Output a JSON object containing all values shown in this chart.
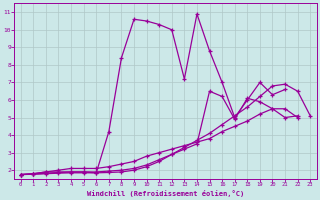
{
  "xlabel": "Windchill (Refroidissement éolien,°C)",
  "bg_color": "#cce8e8",
  "grid_color": "#b0c8c8",
  "line_color": "#990099",
  "marker": "+",
  "xlim": [
    -0.5,
    23.5
  ],
  "ylim": [
    1.5,
    11.5
  ],
  "xticks": [
    0,
    1,
    2,
    3,
    4,
    5,
    6,
    7,
    8,
    9,
    10,
    11,
    12,
    13,
    14,
    15,
    16,
    17,
    18,
    19,
    20,
    21,
    22,
    23
  ],
  "yticks": [
    2,
    3,
    4,
    5,
    6,
    7,
    8,
    9,
    10,
    11
  ],
  "curves": [
    {
      "x": [
        0,
        1,
        2,
        3,
        4,
        5,
        6,
        7,
        8,
        9,
        10,
        11,
        12,
        13,
        14,
        15,
        16,
        17,
        18,
        19,
        20,
        21
      ],
      "y": [
        1.75,
        1.8,
        1.9,
        1.9,
        1.9,
        1.9,
        1.85,
        4.2,
        8.4,
        10.6,
        10.5,
        10.3,
        10.0,
        7.2,
        10.9,
        8.8,
        7.0,
        5.0,
        6.0,
        7.0,
        6.3,
        6.6
      ]
    },
    {
      "x": [
        0,
        1,
        2,
        3,
        4,
        5,
        6,
        7,
        8,
        9,
        10,
        11,
        12,
        13,
        14,
        15,
        16,
        17,
        18,
        19,
        20,
        21,
        22
      ],
      "y": [
        1.75,
        1.8,
        1.9,
        2.0,
        2.1,
        2.1,
        2.1,
        2.2,
        2.35,
        2.5,
        2.8,
        3.0,
        3.2,
        3.4,
        3.6,
        3.8,
        4.2,
        4.5,
        4.8,
        5.2,
        5.5,
        5.5,
        5.0
      ]
    },
    {
      "x": [
        0,
        1,
        2,
        3,
        4,
        5,
        6,
        7,
        8,
        9,
        10,
        11,
        12,
        13,
        14,
        15,
        16,
        17,
        18,
        19,
        20,
        21,
        22
      ],
      "y": [
        1.75,
        1.78,
        1.82,
        1.87,
        1.9,
        1.9,
        1.9,
        1.95,
        2.0,
        2.1,
        2.3,
        2.6,
        2.9,
        3.2,
        3.5,
        6.5,
        6.2,
        4.9,
        6.1,
        5.9,
        5.5,
        5.0,
        5.1
      ]
    },
    {
      "x": [
        0,
        1,
        2,
        3,
        4,
        5,
        6,
        7,
        8,
        9,
        10,
        11,
        12,
        13,
        14,
        15,
        16,
        17,
        18,
        19,
        20,
        21,
        22,
        23
      ],
      "y": [
        1.75,
        1.77,
        1.8,
        1.83,
        1.85,
        1.85,
        1.85,
        1.87,
        1.9,
        2.0,
        2.2,
        2.5,
        2.9,
        3.3,
        3.7,
        4.1,
        4.6,
        5.1,
        5.6,
        6.2,
        6.8,
        6.9,
        6.5,
        5.1
      ]
    }
  ]
}
